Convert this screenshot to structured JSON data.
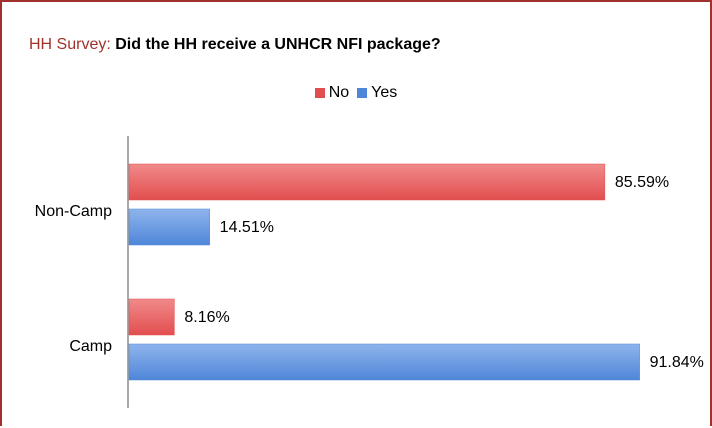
{
  "title": {
    "prefix": "HH Survey:",
    "question": "Did the HH receive a UNHCR NFI package?"
  },
  "legend": [
    {
      "label": "No",
      "color": "#e24e4f"
    },
    {
      "label": "Yes",
      "color": "#4f86d8"
    }
  ],
  "chart_data": {
    "type": "bar",
    "orientation": "horizontal",
    "categories": [
      "Non-Camp",
      "Camp"
    ],
    "series": [
      {
        "name": "No",
        "values": [
          85.59,
          8.16
        ],
        "labels": [
          "85.59%",
          "8.16%"
        ],
        "color": "#e24e4f"
      },
      {
        "name": "Yes",
        "values": [
          14.51,
          91.84
        ],
        "labels": [
          "14.51%",
          "91.84%"
        ],
        "color": "#4f86d8"
      }
    ],
    "xlim": [
      0,
      100
    ],
    "grid": false,
    "legend_position": "top"
  }
}
